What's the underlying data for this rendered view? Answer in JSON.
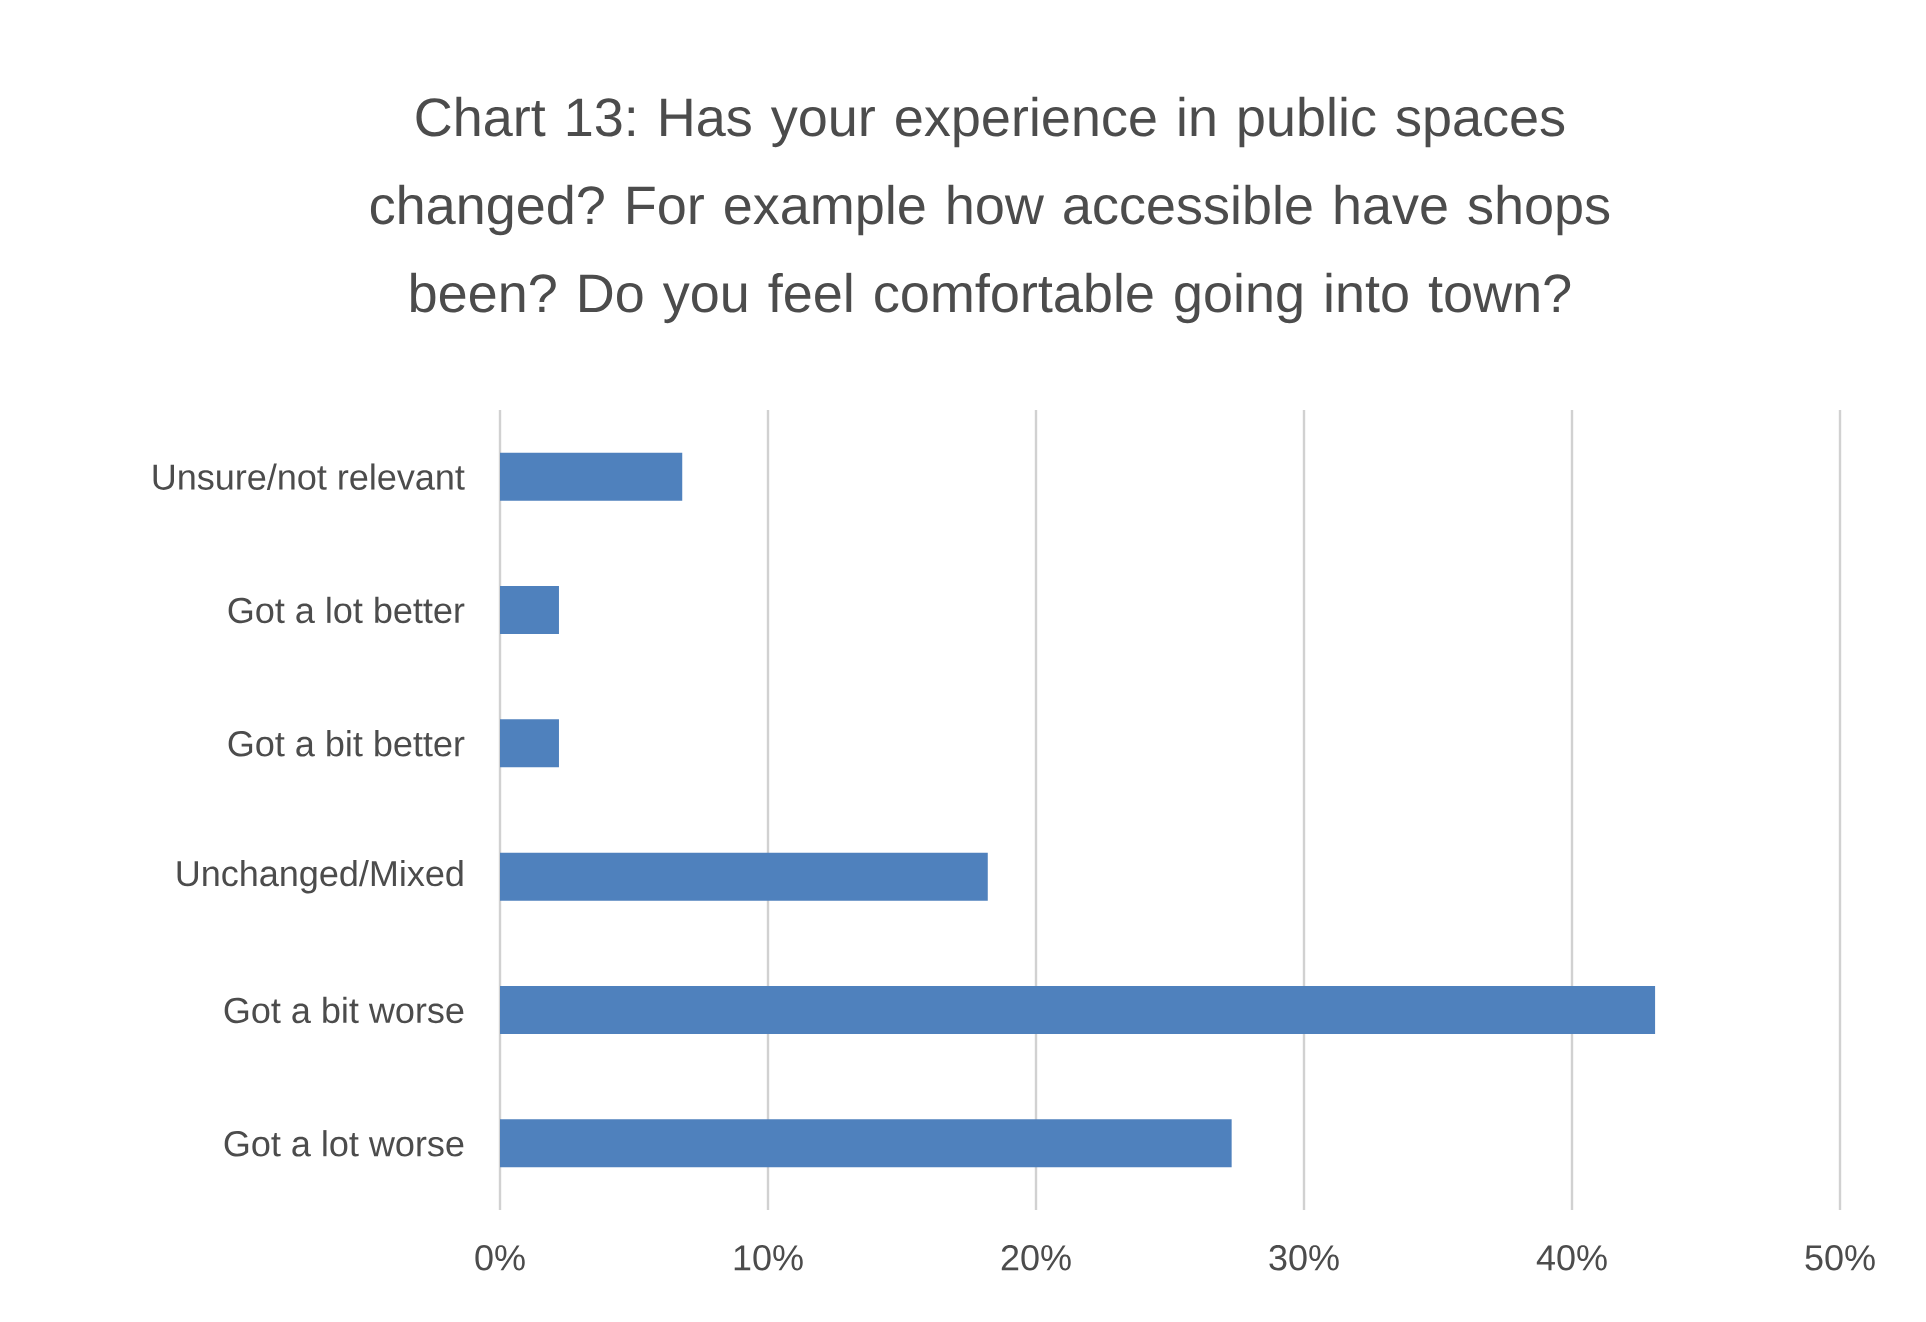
{
  "chart_data": {
    "type": "bar",
    "orientation": "horizontal",
    "title": "Chart 13: Has your experience in public spaces changed? For example how accessible have shops been? Do you feel comfortable going into town?",
    "categories": [
      "Unsure/not relevant",
      "Got a lot better",
      "Got a bit better",
      "Unchanged/Mixed",
      "Got a bit worse",
      "Got a lot worse"
    ],
    "values": [
      6.8,
      2.2,
      2.2,
      18.2,
      43.1,
      27.3
    ],
    "color": "#4f81bd",
    "xlim": [
      0,
      50
    ],
    "xticks": [
      {
        "value": 0,
        "label": "0%"
      },
      {
        "value": 10,
        "label": "10%"
      },
      {
        "value": 20,
        "label": "20%"
      },
      {
        "value": 30,
        "label": "30%"
      },
      {
        "value": 40,
        "label": "40%"
      },
      {
        "value": 50,
        "label": "50%"
      }
    ],
    "grid": "x"
  }
}
